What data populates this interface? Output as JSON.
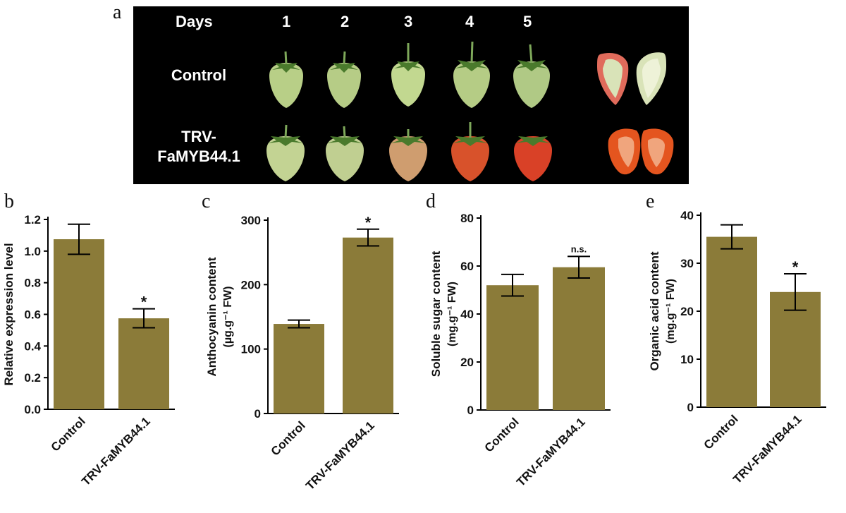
{
  "figure": {
    "panel_letters": [
      "a",
      "b",
      "c",
      "d",
      "e"
    ],
    "photo_panel": {
      "header_label": "Days",
      "days": [
        "1",
        "2",
        "3",
        "4",
        "5"
      ],
      "rows": [
        {
          "label_line1": "Control",
          "label_line2": "",
          "fruit_colors": [
            "#b8cf87",
            "#b6cc86",
            "#c2d890",
            "#b5cc85",
            "#b0c985"
          ],
          "section_colors": [
            "#e06b5b",
            "#d9e3b8"
          ]
        },
        {
          "label_line1": "TRV-",
          "label_line2": "FaMYB44.1",
          "fruit_colors": [
            "#c3d393",
            "#c0cf91",
            "#cf9d6f",
            "#d8522b",
            "#d94127"
          ],
          "section_colors": [
            "#e4551f",
            "#f0a57d"
          ]
        }
      ]
    },
    "bar_color": "#8b7b39"
  },
  "chart_data": [
    {
      "type": "bar",
      "panel": "b",
      "ylabel": "Relative expression level",
      "categories": [
        "Control",
        "TRV-FaMYB44.1"
      ],
      "values": [
        1.075,
        0.575
      ],
      "errors": [
        0.095,
        0.06
      ],
      "annotations": [
        "",
        "*"
      ],
      "ylim": [
        0,
        1.2
      ],
      "yticks": [
        "0.0",
        "0.2",
        "0.4",
        "0.6",
        "0.8",
        "1.0",
        "1.2"
      ]
    },
    {
      "type": "bar",
      "panel": "c",
      "ylabel": "Anthocyanin content",
      "ylabel_unit": "(µg.g⁻¹ FW)",
      "categories": [
        "Control",
        "TRV-FaMYB44.1"
      ],
      "values": [
        139,
        273
      ],
      "errors": [
        6,
        13
      ],
      "annotations": [
        "",
        "*"
      ],
      "ylim": [
        0,
        300
      ],
      "yticks": [
        "0",
        "100",
        "200",
        "300"
      ]
    },
    {
      "type": "bar",
      "panel": "d",
      "ylabel": "Soluble sugar content",
      "ylabel_unit": "(mg.g⁻¹ FW)",
      "categories": [
        "Control",
        "TRV-FaMYB44.1"
      ],
      "values": [
        52,
        59.5
      ],
      "errors": [
        4.5,
        4.5
      ],
      "annotations": [
        "",
        "n.s."
      ],
      "ylim": [
        0,
        80
      ],
      "yticks": [
        "0",
        "20",
        "40",
        "60",
        "80"
      ]
    },
    {
      "type": "bar",
      "panel": "e",
      "ylabel": "Organic acid content",
      "ylabel_unit": "(mg.g⁻¹ FW)",
      "categories": [
        "Control",
        "TRV-FaMYB44.1"
      ],
      "values": [
        35.5,
        24
      ],
      "errors": [
        2.5,
        3.8
      ],
      "annotations": [
        "",
        "*"
      ],
      "ylim": [
        0,
        40
      ],
      "yticks": [
        "0",
        "10",
        "20",
        "30",
        "40"
      ]
    }
  ]
}
